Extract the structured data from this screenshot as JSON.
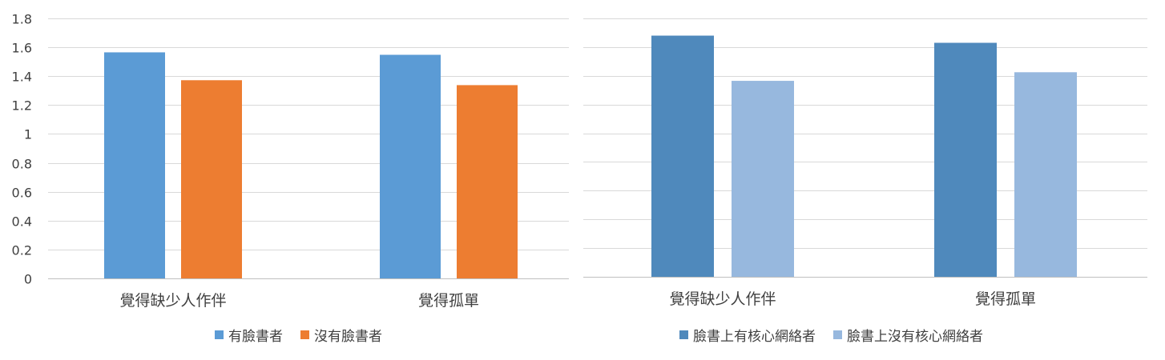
{
  "chart_data": [
    {
      "type": "bar",
      "categories": [
        "覺得缺少人作伴",
        "覺得孤單"
      ],
      "series": [
        {
          "name": "有臉書者",
          "values": [
            1.565,
            1.548
          ],
          "color": "#5B9BD5"
        },
        {
          "name": "沒有臉書者",
          "values": [
            1.372,
            1.338
          ],
          "color": "#ED7D31"
        }
      ],
      "ylim": [
        0,
        1.8
      ],
      "yticks": [
        "0",
        "0.2",
        "0.4",
        "0.6",
        "0.8",
        "1",
        "1.2",
        "1.4",
        "1.6",
        "1.8"
      ],
      "grid": true,
      "legend": "bottom"
    },
    {
      "type": "bar",
      "categories": [
        "覺得缺少人作伴",
        "覺得孤單"
      ],
      "series": [
        {
          "name": "臉書上有核心網絡者",
          "values": [
            1.68,
            1.63
          ],
          "color": "#4F89BC"
        },
        {
          "name": "臉書上沒有核心網絡者",
          "values": [
            1.365,
            1.425
          ],
          "color": "#97B8DE"
        }
      ],
      "ylim": [
        0,
        1.8
      ],
      "grid": true,
      "legend": "bottom"
    }
  ]
}
